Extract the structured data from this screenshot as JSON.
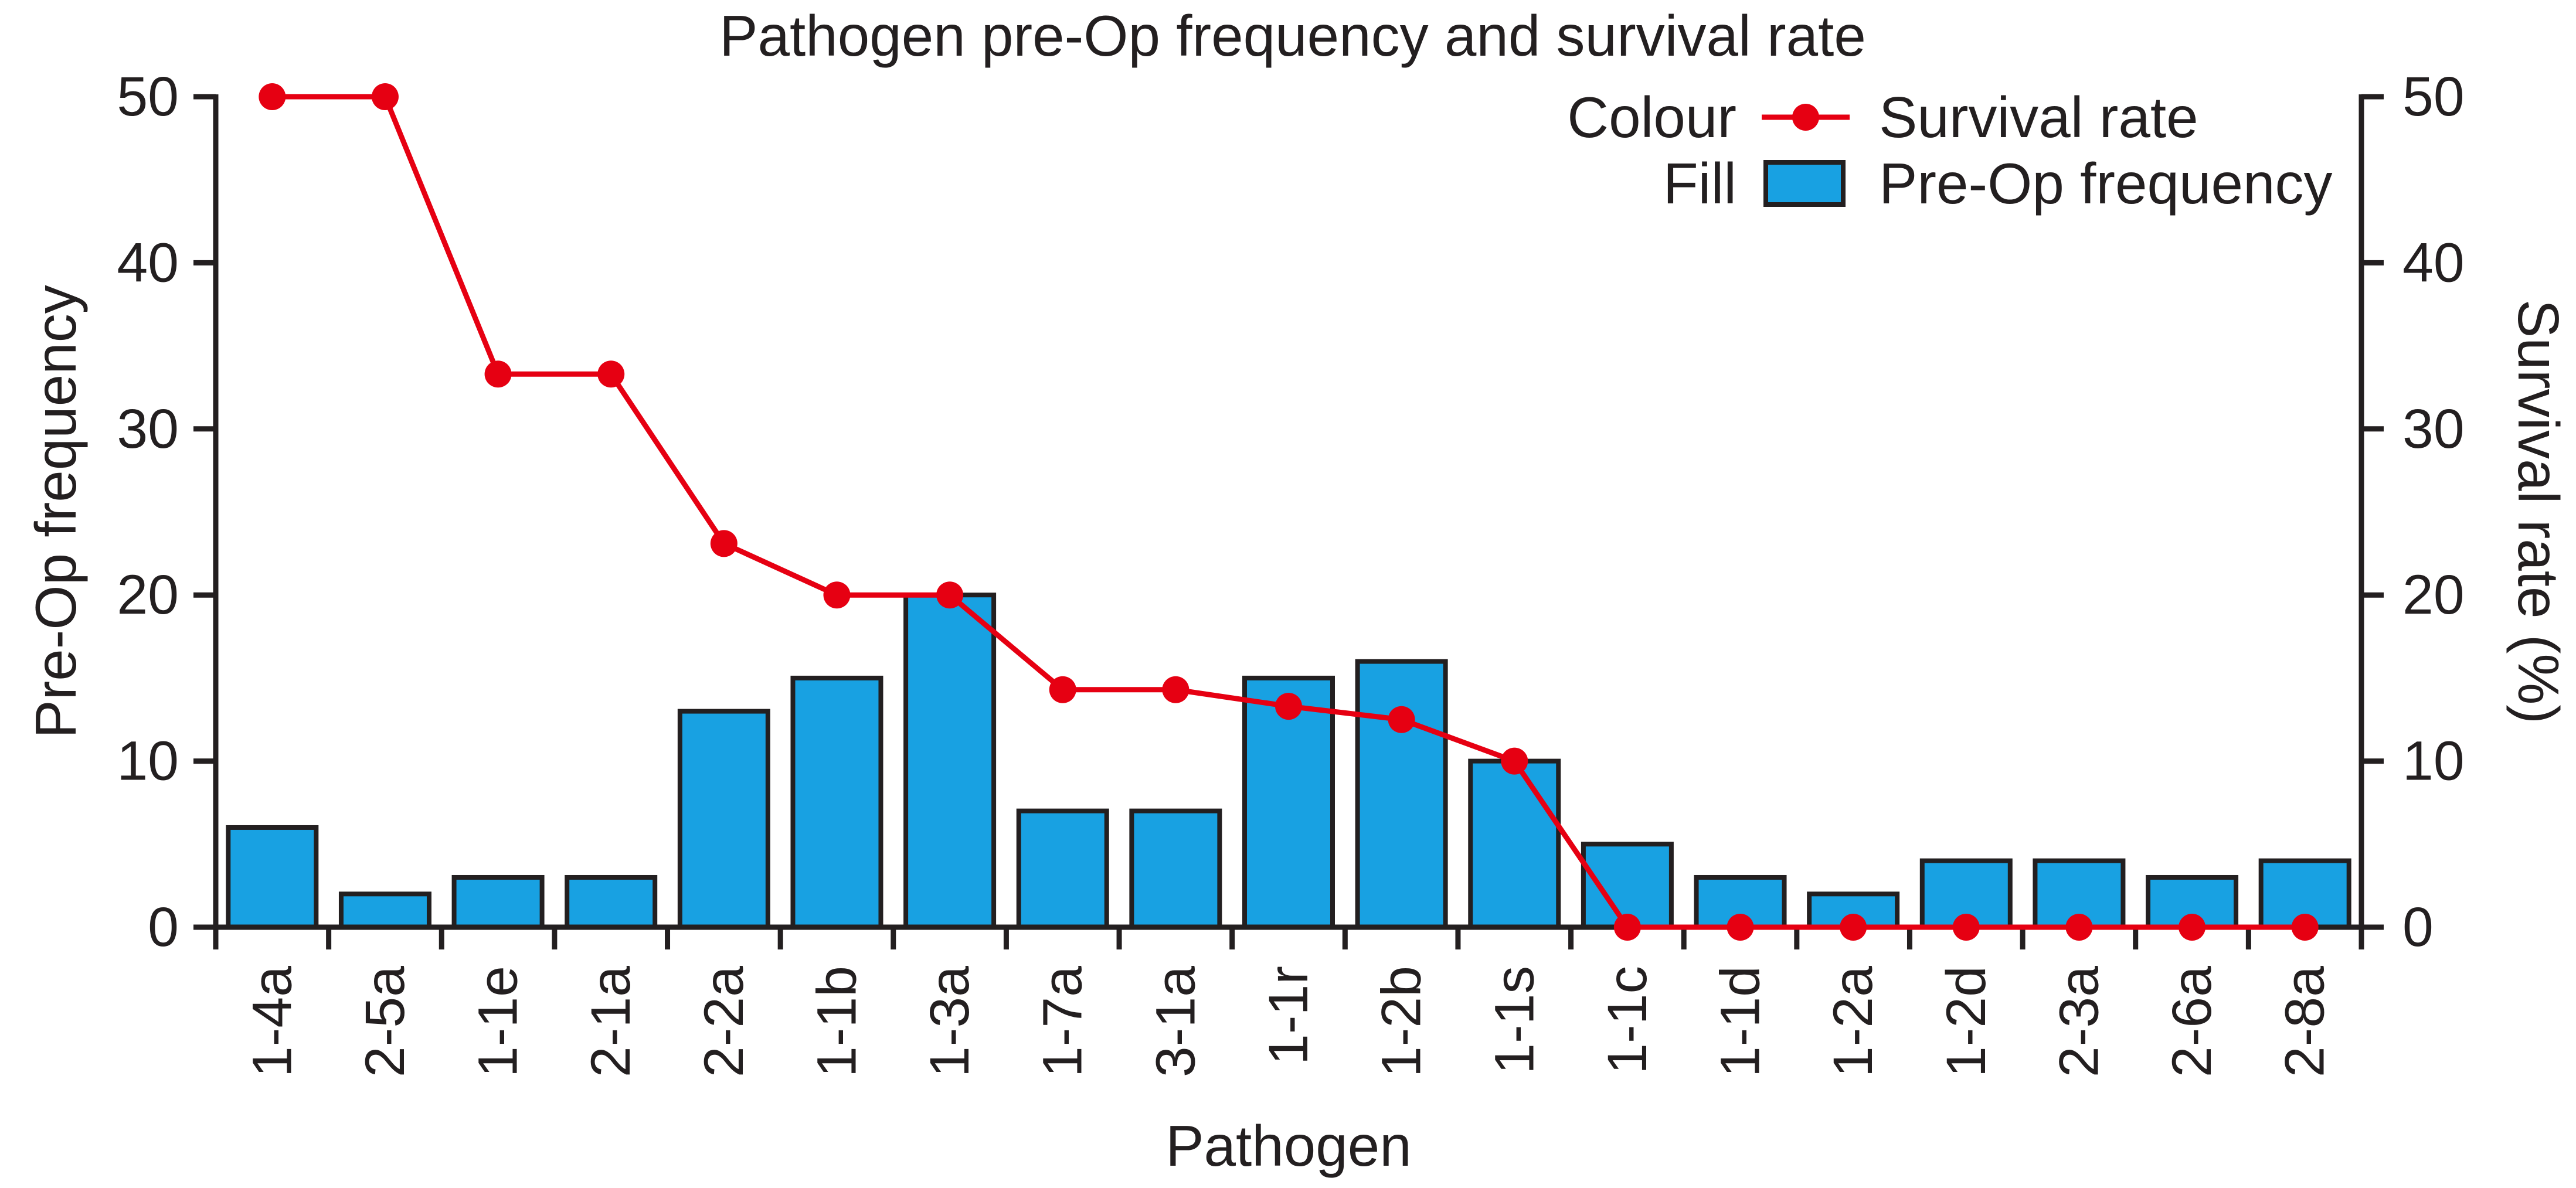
{
  "title": "Pathogen pre-Op frequency and survival rate",
  "legend": {
    "colour_group_label": "Colour",
    "fill_group_label": "Fill",
    "survival_item_label": "Survival rate",
    "frequency_item_label": "Pre-Op frequency"
  },
  "axes": {
    "left_title": "Pre-Op frequency",
    "right_title": "Survival rate (%)",
    "bottom_title": "Pathogen",
    "left_ticks": [
      0,
      10,
      20,
      30,
      40,
      50
    ],
    "right_ticks": [
      0,
      10,
      20,
      30,
      40,
      50
    ],
    "ylim": [
      0,
      50
    ]
  },
  "colors": {
    "bar_fill": "#18A1E2",
    "line": "#E60012",
    "ink": "#231F20",
    "background": "#FFFFFF"
  },
  "chart_data": {
    "type": "bar",
    "title": "Pathogen pre-Op frequency and survival rate",
    "xlabel": "Pathogen",
    "ylabel": "Pre-Op frequency",
    "ylabel_right": "Survival rate (%)",
    "ylim": [
      0,
      50
    ],
    "yticks": [
      0,
      10,
      20,
      30,
      40,
      50
    ],
    "grid": false,
    "legend_position": "top-right",
    "categories": [
      "1-4a",
      "2-5a",
      "1-1e",
      "2-1a",
      "2-2a",
      "1-1b",
      "1-3a",
      "1-7a",
      "3-1a",
      "1-1r",
      "1-2b",
      "1-1s",
      "1-1c",
      "1-1d",
      "1-2a",
      "1-2d",
      "2-3a",
      "2-6a",
      "2-8a"
    ],
    "series": [
      {
        "name": "Pre-Op frequency",
        "type": "bar",
        "axis": "left",
        "values": [
          6,
          2,
          3,
          3,
          13,
          15,
          20,
          7,
          7,
          15,
          16,
          10,
          5,
          3,
          2,
          4,
          4,
          3,
          4
        ]
      },
      {
        "name": "Survival rate",
        "type": "line",
        "axis": "right",
        "values": [
          50,
          50,
          33.3,
          33.3,
          23.1,
          20,
          20,
          14.3,
          14.3,
          13.3,
          12.5,
          10,
          0,
          0,
          0,
          0,
          0,
          0,
          0
        ]
      }
    ]
  }
}
